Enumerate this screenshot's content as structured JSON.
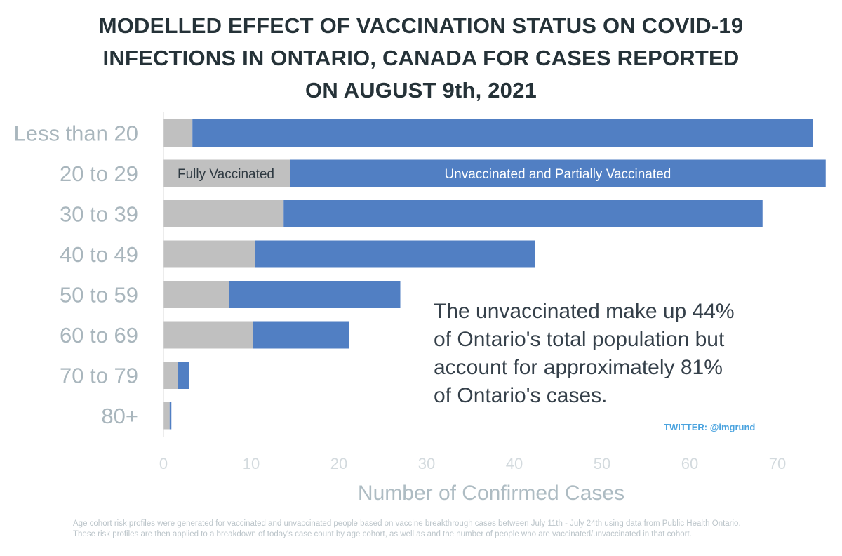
{
  "title_lines": [
    "MODELLED EFFECT OF VACCINATION STATUS ON COVID-19",
    "INFECTIONS IN ONTARIO, CANADA FOR CASES REPORTED",
    "ON AUGUST 9th, 2021"
  ],
  "annotation_lines": [
    "The unvaccinated make up 44%",
    "of Ontario's total population but",
    "account for approximately 81%",
    "of Ontario's cases."
  ],
  "credit": "TWITTER: @imgrund",
  "footnote_lines": [
    "Age cohort risk profiles were generated for vaccinated and unvaccinated people based on vaccine breakthrough cases between July 11th - July 24th using data from Public Health Ontario.",
    "These risk profiles are then applied to a breakdown of today's case count by age cohort, as well as and the number of people who are  vaccinated/unvaccinated in that cohort."
  ],
  "colors": {
    "fully_vaccinated": "#c0c0c0",
    "unvaccinated": "#517fc3",
    "title": "#253238"
  },
  "chart_data": {
    "type": "bar",
    "orientation": "horizontal",
    "stacked": true,
    "categories": [
      "Less than 20",
      "20 to 29",
      "30 to 39",
      "40 to 49",
      "50 to 59",
      "60 to 69",
      "70 to 79",
      "80+"
    ],
    "series": [
      {
        "name": "Fully Vaccinated",
        "values": [
          3.3,
          14.4,
          13.7,
          10.4,
          7.5,
          10.2,
          1.6,
          0.7
        ]
      },
      {
        "name": "Unvaccinated and Partially Vaccinated",
        "values": [
          70.7,
          61.1,
          54.6,
          32.0,
          19.5,
          11.0,
          1.3,
          0.2
        ]
      }
    ],
    "title": "MODELLED EFFECT OF VACCINATION STATUS ON COVID-19 INFECTIONS IN ONTARIO, CANADA FOR CASES REPORTED ON AUGUST 9th, 2021",
    "xlabel": "Number of Confirmed Cases",
    "ylabel": "",
    "xlim": [
      0,
      75
    ],
    "xticks": [
      0,
      10,
      20,
      30,
      40,
      50,
      60,
      70
    ],
    "grid": false,
    "legend": "inline labels on the 20 to 29 bar"
  }
}
